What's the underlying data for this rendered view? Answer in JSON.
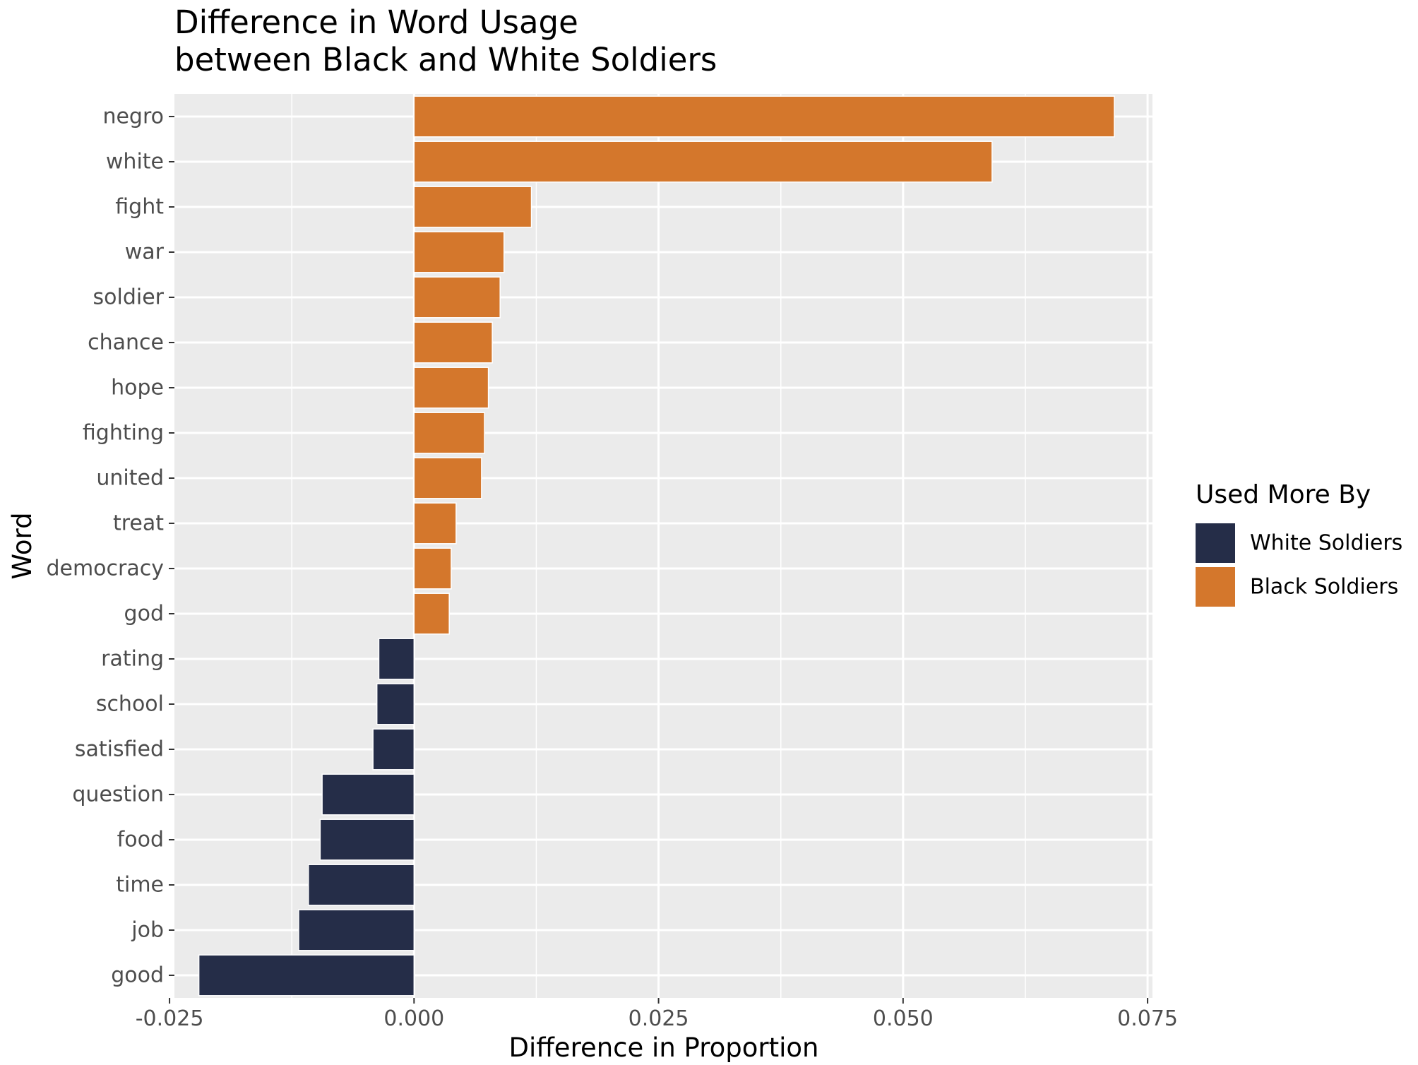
{
  "chart_data": {
    "type": "bar",
    "orientation": "horizontal",
    "title": [
      "Difference in Word Usage",
      "between Black and White Soldiers"
    ],
    "xlabel": "Difference in Proportion",
    "ylabel": "Word",
    "xlim": [
      -0.0245,
      0.0755
    ],
    "x_ticks": [
      -0.025,
      0.0,
      0.025,
      0.05,
      0.075
    ],
    "x_tick_labels": [
      "-0.025",
      "0.000",
      "0.025",
      "0.050",
      "0.075"
    ],
    "grid": true,
    "legend_position": "right",
    "legend": {
      "title": "Used More By",
      "entries": [
        {
          "label": "White Soldiers",
          "color": "#252d48"
        },
        {
          "label": "Black Soldiers",
          "color": "#d4772c"
        }
      ]
    },
    "categories": [
      "negro",
      "white",
      "fight",
      "war",
      "soldier",
      "chance",
      "hope",
      "fighting",
      "united",
      "treat",
      "democracy",
      "god",
      "rating",
      "school",
      "satisfied",
      "question",
      "food",
      "time",
      "job",
      "good"
    ],
    "values": [
      0.0716,
      0.0591,
      0.012,
      0.0092,
      0.0088,
      0.008,
      0.0076,
      0.0072,
      0.0069,
      0.0043,
      0.0038,
      0.0036,
      -0.0036,
      -0.0038,
      -0.0042,
      -0.0094,
      -0.0096,
      -0.0108,
      -0.0118,
      -0.022
    ],
    "group": [
      "Black Soldiers",
      "Black Soldiers",
      "Black Soldiers",
      "Black Soldiers",
      "Black Soldiers",
      "Black Soldiers",
      "Black Soldiers",
      "Black Soldiers",
      "Black Soldiers",
      "Black Soldiers",
      "Black Soldiers",
      "Black Soldiers",
      "White Soldiers",
      "White Soldiers",
      "White Soldiers",
      "White Soldiers",
      "White Soldiers",
      "White Soldiers",
      "White Soldiers",
      "White Soldiers"
    ]
  }
}
